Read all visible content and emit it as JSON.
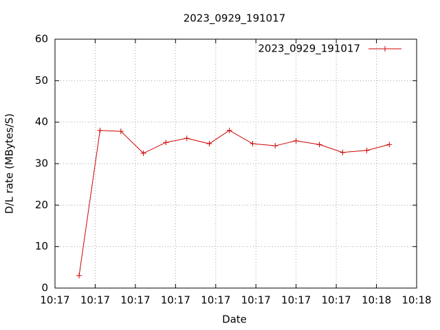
{
  "chart_data": {
    "type": "line",
    "title": "2023_0929_191017",
    "x_label": "Date",
    "y_label": "D/L rate (MBytes/S)",
    "series": [
      {
        "name": "2023_0929_191017",
        "color": "#cc0000",
        "x": [
          3.0,
          5.6,
          8.2,
          11.0,
          13.8,
          16.4,
          19.2,
          21.7,
          24.6,
          27.4,
          30.0,
          32.9,
          35.8,
          38.8,
          41.6
        ],
        "values": [
          3.0,
          38.0,
          37.8,
          32.5,
          35.1,
          36.1,
          34.8,
          38.0,
          34.8,
          34.3,
          35.5,
          34.6,
          32.7,
          33.2,
          34.6
        ]
      }
    ],
    "xlim": [
      0,
      45
    ],
    "xticks": [
      {
        "value": 0,
        "label": "10:17"
      },
      {
        "value": 5,
        "label": "10:17"
      },
      {
        "value": 10,
        "label": "10:17"
      },
      {
        "value": 15,
        "label": "10:17"
      },
      {
        "value": 20,
        "label": "10:17"
      },
      {
        "value": 25,
        "label": "10:17"
      },
      {
        "value": 30,
        "label": "10:17"
      },
      {
        "value": 35,
        "label": "10:17"
      },
      {
        "value": 40,
        "label": "10:18"
      },
      {
        "value": 45,
        "label": "10:18"
      }
    ],
    "ylim": [
      0,
      60
    ],
    "yticks": [
      0,
      10,
      20,
      30,
      40,
      50,
      60
    ],
    "grid": true,
    "legend": "top-right"
  }
}
